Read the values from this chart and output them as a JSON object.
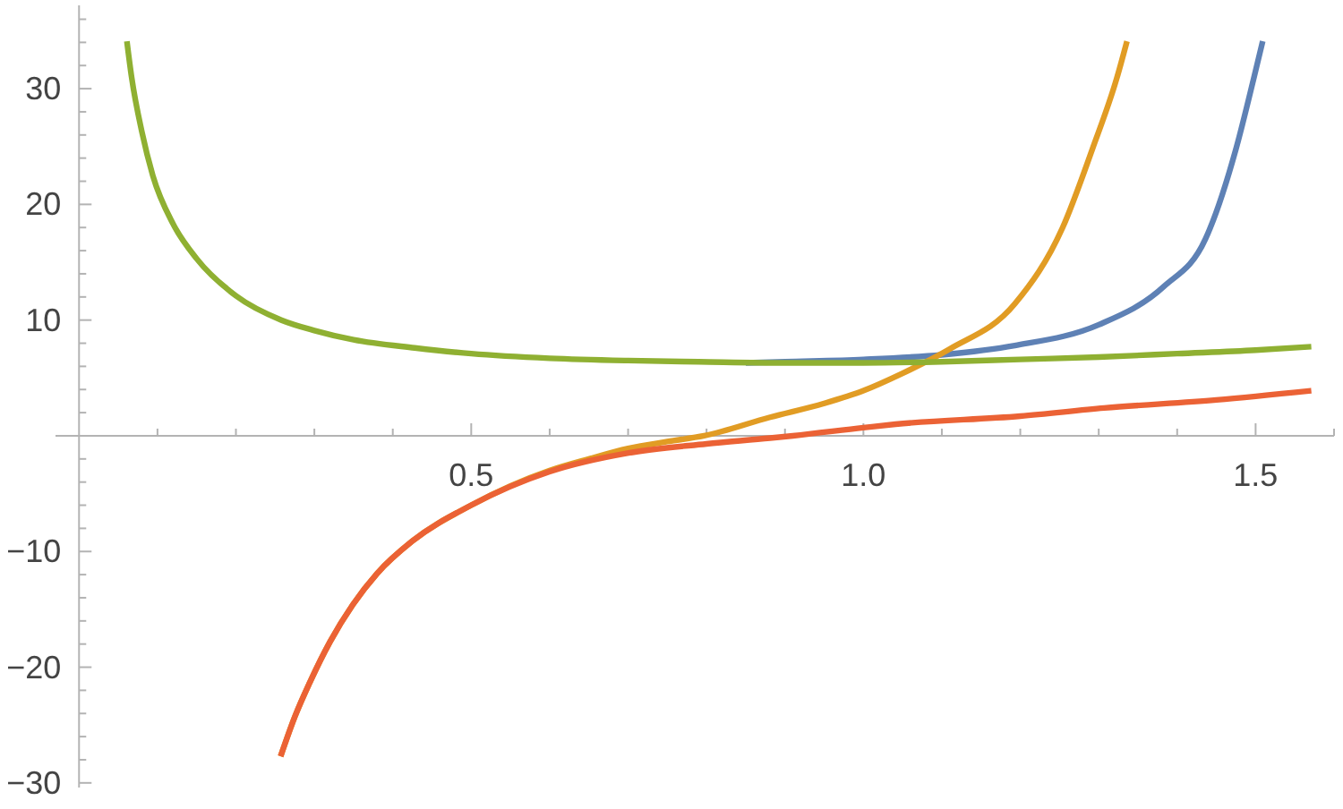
{
  "chart_data": {
    "type": "line",
    "xlim": [
      -0.03,
      1.6
    ],
    "ylim": [
      -30.4,
      37.2
    ],
    "xticks": [
      {
        "value": 0.1,
        "label": null
      },
      {
        "value": 0.2,
        "label": null
      },
      {
        "value": 0.3,
        "label": null
      },
      {
        "value": 0.4,
        "label": null
      },
      {
        "value": 0.5,
        "label": "0.5"
      },
      {
        "value": 0.6,
        "label": null
      },
      {
        "value": 0.7,
        "label": null
      },
      {
        "value": 0.8,
        "label": null
      },
      {
        "value": 0.9,
        "label": null
      },
      {
        "value": 1.0,
        "label": "1.0"
      },
      {
        "value": 1.1,
        "label": null
      },
      {
        "value": 1.2,
        "label": null
      },
      {
        "value": 1.3,
        "label": null
      },
      {
        "value": 1.4,
        "label": null
      },
      {
        "value": 1.5,
        "label": "1.5"
      },
      {
        "value": 1.6,
        "label": null
      }
    ],
    "yticks": [
      {
        "value": -30,
        "label": "−30"
      },
      {
        "value": -28,
        "label": null
      },
      {
        "value": -26,
        "label": null
      },
      {
        "value": -24,
        "label": null
      },
      {
        "value": -22,
        "label": null
      },
      {
        "value": -20,
        "label": "−20"
      },
      {
        "value": -18,
        "label": null
      },
      {
        "value": -16,
        "label": null
      },
      {
        "value": -14,
        "label": null
      },
      {
        "value": -12,
        "label": null
      },
      {
        "value": -10,
        "label": "−10"
      },
      {
        "value": -8,
        "label": null
      },
      {
        "value": -6,
        "label": null
      },
      {
        "value": -4,
        "label": null
      },
      {
        "value": -2,
        "label": null
      },
      {
        "value": 2,
        "label": null
      },
      {
        "value": 4,
        "label": null
      },
      {
        "value": 6,
        "label": null
      },
      {
        "value": 8,
        "label": null
      },
      {
        "value": 10,
        "label": "10"
      },
      {
        "value": 12,
        "label": null
      },
      {
        "value": 14,
        "label": null
      },
      {
        "value": 16,
        "label": null
      },
      {
        "value": 18,
        "label": null
      },
      {
        "value": 20,
        "label": "20"
      },
      {
        "value": 22,
        "label": null
      },
      {
        "value": 24,
        "label": null
      },
      {
        "value": 26,
        "label": null
      },
      {
        "value": 28,
        "label": null
      },
      {
        "value": 30,
        "label": "30"
      },
      {
        "value": 32,
        "label": null
      },
      {
        "value": 34,
        "label": null
      },
      {
        "value": 36,
        "label": null
      }
    ],
    "series": [
      {
        "color": "#5e81b5",
        "x": [
          0.85,
          0.9,
          1.0,
          1.1,
          1.193,
          1.3,
          1.383,
          1.436,
          1.475,
          1.498,
          1.509
        ],
        "values": [
          6.3,
          6.4,
          6.6,
          7.0,
          7.8,
          9.6,
          12.9,
          17,
          24.8,
          31,
          34.1
        ]
      },
      {
        "color": "#e19c24",
        "x": [
          0.257,
          0.275,
          0.295,
          0.32,
          0.349,
          0.38,
          0.425,
          0.5,
          0.6,
          0.65,
          0.7,
          0.75,
          0.797,
          0.881,
          0.95,
          1.0,
          1.05,
          1.11,
          1.193,
          1.254,
          1.292,
          1.323,
          1.336
        ],
        "values": [
          -27.7,
          -24.3,
          -21.2,
          -17.8,
          -14.6,
          -11.9,
          -9.1,
          -6.0,
          -3.0,
          -2.0,
          -1.1,
          -0.5,
          0,
          1.6,
          2.8,
          3.9,
          5.4,
          7.5,
          11.4,
          18,
          24.8,
          30.9,
          34.1
        ]
      },
      {
        "color": "#8fb032",
        "x": [
          0.061,
          0.067,
          0.08,
          0.094,
          0.12,
          0.15,
          0.2,
          0.258,
          0.3,
          0.35,
          0.428,
          0.5,
          0.6,
          0.7,
          0.79,
          0.9,
          1.0,
          1.1,
          1.2,
          1.3,
          1.4,
          1.5,
          1.571
        ],
        "values": [
          34.1,
          31,
          26.3,
          22.5,
          18.3,
          15.3,
          12.1,
          10,
          9.1,
          8.3,
          7.6,
          7.1,
          6.7,
          6.5,
          6.4,
          6.3,
          6.3,
          6.4,
          6.6,
          6.8,
          7.1,
          7.4,
          7.7
        ]
      },
      {
        "color": "#eb6235",
        "x": [
          0.257,
          0.275,
          0.295,
          0.32,
          0.349,
          0.38,
          0.425,
          0.5,
          0.6,
          0.699,
          0.8,
          0.881,
          0.91,
          1.0,
          1.041,
          1.2,
          1.307,
          1.45,
          1.571
        ],
        "values": [
          -27.7,
          -24.3,
          -21.2,
          -17.8,
          -14.6,
          -11.9,
          -9.1,
          -6.0,
          -3.1,
          -1.5,
          -0.7,
          -0.2,
          0,
          0.7,
          1.0,
          1.7,
          2.4,
          3.1,
          3.9
        ]
      }
    ]
  }
}
